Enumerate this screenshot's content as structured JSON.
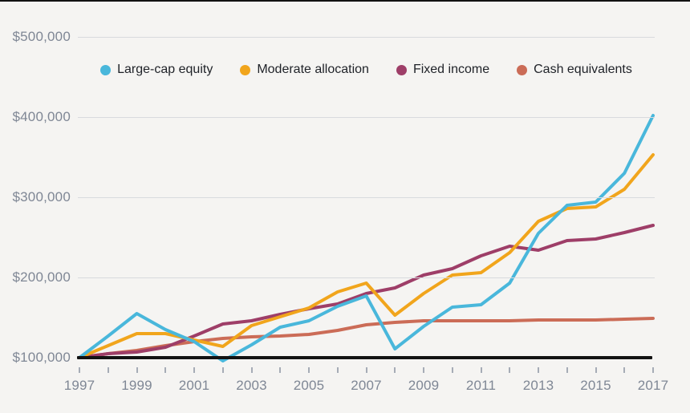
{
  "legend": [
    {
      "label": "Large-cap equity",
      "color": "#49b7db"
    },
    {
      "label": "Moderate allocation",
      "color": "#f1a51c"
    },
    {
      "label": "Fixed income",
      "color": "#9e3e68"
    },
    {
      "label": "Cash equivalents",
      "color": "#cb6c57"
    }
  ],
  "axes": {
    "y_tick_labels": [
      "$500,000",
      "$400,000",
      "$300,000",
      "$200,000",
      "$100,000"
    ],
    "y_tick_values": [
      500000,
      400000,
      300000,
      200000,
      100000
    ],
    "x_tick_labels": [
      "1997",
      "1999",
      "2001",
      "2003",
      "2005",
      "2007",
      "2009",
      "2011",
      "2013",
      "2015",
      "2017"
    ]
  },
  "chart_data": {
    "type": "line",
    "x": [
      1997,
      1998,
      1999,
      2000,
      2001,
      2002,
      2003,
      2004,
      2005,
      2006,
      2007,
      2008,
      2009,
      2010,
      2011,
      2012,
      2013,
      2014,
      2015,
      2016,
      2017
    ],
    "series": [
      {
        "name": "Large-cap equity",
        "color": "#49b7db",
        "values": [
          100000,
          127000,
          155000,
          135000,
          120000,
          96000,
          116000,
          138000,
          146000,
          164000,
          177000,
          111000,
          139000,
          163000,
          166000,
          193000,
          255000,
          290000,
          294000,
          330000,
          402000
        ]
      },
      {
        "name": "Moderate allocation",
        "color": "#f1a51c",
        "values": [
          100000,
          115000,
          130000,
          130000,
          122000,
          114000,
          140000,
          151000,
          162000,
          182000,
          193000,
          153000,
          180000,
          203000,
          206000,
          231000,
          270000,
          286000,
          288000,
          310000,
          353000
        ]
      },
      {
        "name": "Fixed income",
        "color": "#9e3e68",
        "values": [
          100000,
          105000,
          107000,
          113000,
          127000,
          142000,
          146000,
          154000,
          161000,
          167000,
          180000,
          187000,
          203000,
          211000,
          227000,
          239000,
          234000,
          246000,
          248000,
          256000,
          265000
        ]
      },
      {
        "name": "Cash equivalents",
        "color": "#cb6c57",
        "values": [
          100000,
          105000,
          109000,
          115000,
          120000,
          124000,
          126000,
          127000,
          129000,
          134000,
          141000,
          144000,
          146000,
          146000,
          146000,
          146000,
          147000,
          147000,
          147000,
          148000,
          149000
        ]
      }
    ],
    "title": "",
    "xlabel": "",
    "ylabel": "",
    "ylim": [
      100000,
      500000
    ],
    "xlim": [
      1997,
      2017
    ],
    "grid": true,
    "legend_position": "top",
    "baseline_value": 100000
  },
  "colors": {
    "background": "#f5f4f2",
    "gridline": "#d8dade",
    "baseline": "#121212",
    "axis_text": "#7f8795",
    "legend_text": "#1f2228"
  }
}
